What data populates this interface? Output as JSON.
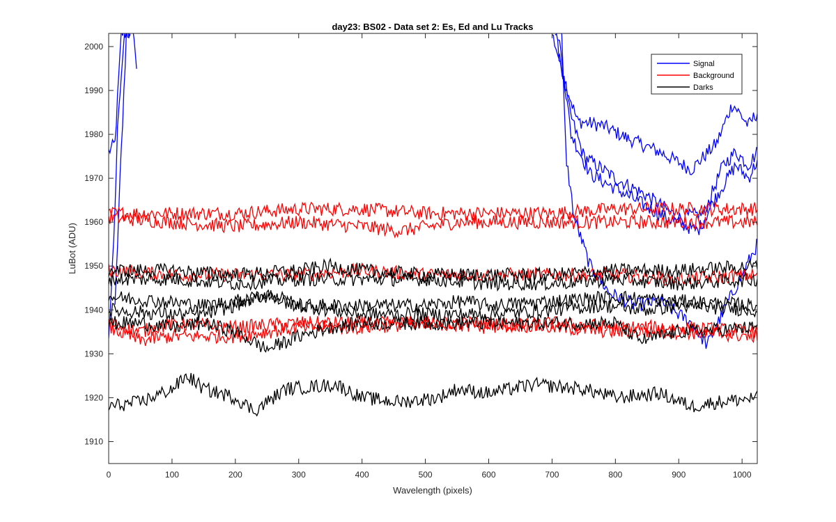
{
  "chart_data": {
    "type": "line",
    "title": "day23: BS02 - Data set 2: Es, Ed and Lu Tracks",
    "xlabel": "Wavelength (pixels)",
    "ylabel": "LuBot (ADU)",
    "xlim": [
      0,
      1024
    ],
    "ylim": [
      1905,
      2003
    ],
    "xticks": [
      0,
      100,
      200,
      300,
      400,
      500,
      600,
      700,
      800,
      900,
      1000
    ],
    "yticks": [
      1910,
      1920,
      1930,
      1940,
      1950,
      1960,
      1970,
      1980,
      1990,
      2000
    ],
    "grid": false,
    "legend_position": "top-right",
    "legend": [
      {
        "label": "Signal",
        "color": "#0000ff"
      },
      {
        "label": "Background",
        "color": "#ff0000"
      },
      {
        "label": "Darks",
        "color": "#000000"
      }
    ],
    "series": [
      {
        "group": "Signal",
        "color": "#0000ff",
        "points": [
          [
            0,
            1976
          ],
          [
            10,
            1978
          ],
          [
            20,
            2003
          ],
          [
            30,
            2003
          ],
          [
            40,
            2003
          ],
          [
            45,
            1992
          ]
        ]
      },
      {
        "group": "Signal",
        "color": "#0000ff",
        "points": [
          [
            0,
            1934
          ],
          [
            8,
            1955
          ],
          [
            15,
            1985
          ],
          [
            25,
            2003
          ],
          [
            35,
            2003
          ]
        ]
      },
      {
        "group": "Signal",
        "color": "#0000ff",
        "points": [
          [
            10,
            1940
          ],
          [
            18,
            1970
          ],
          [
            28,
            2003
          ]
        ]
      },
      {
        "group": "Signal",
        "color": "#0000ff",
        "points": [
          [
            700,
            2003
          ],
          [
            725,
            1990
          ],
          [
            740,
            1983
          ],
          [
            780,
            1982
          ],
          [
            820,
            1979
          ],
          [
            870,
            1976
          ],
          [
            920,
            1972
          ],
          [
            960,
            1978
          ],
          [
            985,
            1987
          ],
          [
            1010,
            1982
          ],
          [
            1024,
            1985
          ]
        ]
      },
      {
        "group": "Signal",
        "color": "#0000ff",
        "points": [
          [
            705,
            2003
          ],
          [
            728,
            1985
          ],
          [
            750,
            1975
          ],
          [
            800,
            1970
          ],
          [
            850,
            1966
          ],
          [
            900,
            1961
          ],
          [
            940,
            1962
          ],
          [
            970,
            1973
          ],
          [
            990,
            1976
          ],
          [
            1010,
            1973
          ],
          [
            1024,
            1976
          ]
        ]
      },
      {
        "group": "Signal",
        "color": "#0000ff",
        "points": [
          [
            710,
            2003
          ],
          [
            730,
            1980
          ],
          [
            760,
            1971
          ],
          [
            820,
            1966
          ],
          [
            880,
            1961
          ],
          [
            930,
            1958
          ],
          [
            960,
            1966
          ],
          [
            990,
            1973
          ],
          [
            1010,
            1970
          ],
          [
            1024,
            1974
          ]
        ]
      },
      {
        "group": "Signal",
        "color": "#0000ff",
        "points": [
          [
            715,
            2003
          ],
          [
            722,
            1975
          ],
          [
            735,
            1961
          ],
          [
            760,
            1950
          ],
          [
            790,
            1944
          ],
          [
            830,
            1941
          ],
          [
            870,
            1942
          ],
          [
            920,
            1937
          ],
          [
            945,
            1932
          ],
          [
            975,
            1941
          ],
          [
            1000,
            1948
          ],
          [
            1024,
            1955
          ]
        ]
      },
      {
        "group": "Background",
        "color": "#ff0000",
        "points": [
          [
            0,
            1962
          ],
          [
            100,
            1962
          ],
          [
            200,
            1962
          ],
          [
            300,
            1963
          ],
          [
            400,
            1963
          ],
          [
            500,
            1962
          ],
          [
            600,
            1962
          ],
          [
            700,
            1962
          ],
          [
            800,
            1963
          ],
          [
            900,
            1963
          ],
          [
            1024,
            1963
          ]
        ]
      },
      {
        "group": "Background",
        "color": "#ff0000",
        "points": [
          [
            0,
            1961
          ],
          [
            100,
            1960
          ],
          [
            200,
            1959
          ],
          [
            300,
            1960
          ],
          [
            400,
            1959
          ],
          [
            460,
            1958
          ],
          [
            550,
            1960
          ],
          [
            650,
            1960
          ],
          [
            750,
            1960
          ],
          [
            850,
            1960
          ],
          [
            950,
            1960
          ],
          [
            1024,
            1960
          ]
        ]
      },
      {
        "group": "Background",
        "color": "#ff0000",
        "points": [
          [
            0,
            1949
          ],
          [
            100,
            1948
          ],
          [
            200,
            1948
          ],
          [
            300,
            1948
          ],
          [
            400,
            1949
          ],
          [
            500,
            1948
          ],
          [
            600,
            1948
          ],
          [
            700,
            1948
          ],
          [
            800,
            1948
          ],
          [
            900,
            1947
          ],
          [
            1024,
            1948
          ]
        ]
      },
      {
        "group": "Background",
        "color": "#ff0000",
        "points": [
          [
            0,
            1937
          ],
          [
            50,
            1935
          ],
          [
            100,
            1937
          ],
          [
            200,
            1936
          ],
          [
            300,
            1937
          ],
          [
            400,
            1937
          ],
          [
            500,
            1937
          ],
          [
            600,
            1936
          ],
          [
            700,
            1937
          ],
          [
            800,
            1936
          ],
          [
            900,
            1936
          ],
          [
            1024,
            1935
          ]
        ]
      },
      {
        "group": "Background",
        "color": "#ff0000",
        "points": [
          [
            0,
            1936
          ],
          [
            50,
            1933
          ],
          [
            100,
            1934
          ],
          [
            200,
            1934
          ],
          [
            250,
            1935
          ],
          [
            300,
            1936
          ],
          [
            400,
            1936
          ],
          [
            500,
            1937
          ],
          [
            600,
            1937
          ],
          [
            700,
            1936
          ],
          [
            800,
            1935
          ],
          [
            900,
            1935
          ],
          [
            1024,
            1934
          ]
        ]
      },
      {
        "group": "Darks",
        "color": "#000000",
        "points": [
          [
            0,
            1949
          ],
          [
            100,
            1949
          ],
          [
            200,
            1948
          ],
          [
            300,
            1949
          ],
          [
            350,
            1950
          ],
          [
            400,
            1949
          ],
          [
            500,
            1948
          ],
          [
            600,
            1948
          ],
          [
            700,
            1948
          ],
          [
            800,
            1949
          ],
          [
            900,
            1949
          ],
          [
            1024,
            1950
          ]
        ]
      },
      {
        "group": "Darks",
        "color": "#000000",
        "points": [
          [
            0,
            1947
          ],
          [
            100,
            1947
          ],
          [
            200,
            1946
          ],
          [
            300,
            1947
          ],
          [
            400,
            1947
          ],
          [
            500,
            1947
          ],
          [
            600,
            1946
          ],
          [
            700,
            1946
          ],
          [
            800,
            1947
          ],
          [
            900,
            1946
          ],
          [
            1024,
            1947
          ]
        ]
      },
      {
        "group": "Darks",
        "color": "#000000",
        "points": [
          [
            0,
            1943
          ],
          [
            80,
            1942
          ],
          [
            150,
            1941
          ],
          [
            200,
            1942
          ],
          [
            250,
            1943
          ],
          [
            300,
            1941
          ],
          [
            400,
            1941
          ],
          [
            500,
            1941
          ],
          [
            560,
            1942
          ],
          [
            600,
            1941
          ],
          [
            700,
            1942
          ],
          [
            800,
            1943
          ],
          [
            900,
            1942
          ],
          [
            1024,
            1941
          ]
        ]
      },
      {
        "group": "Darks",
        "color": "#000000",
        "points": [
          [
            0,
            1940
          ],
          [
            100,
            1939
          ],
          [
            150,
            1939
          ],
          [
            200,
            1941
          ],
          [
            250,
            1944
          ],
          [
            300,
            1941
          ],
          [
            400,
            1939
          ],
          [
            500,
            1939
          ],
          [
            600,
            1939
          ],
          [
            700,
            1940
          ],
          [
            780,
            1941
          ],
          [
            850,
            1940
          ],
          [
            900,
            1941
          ],
          [
            1024,
            1940
          ]
        ]
      },
      {
        "group": "Darks",
        "color": "#000000",
        "points": [
          [
            0,
            1937
          ],
          [
            50,
            1937
          ],
          [
            100,
            1936
          ],
          [
            150,
            1937
          ],
          [
            200,
            1935
          ],
          [
            250,
            1931
          ],
          [
            300,
            1934
          ],
          [
            350,
            1936
          ],
          [
            400,
            1937
          ],
          [
            500,
            1937
          ],
          [
            600,
            1937
          ],
          [
            700,
            1937
          ],
          [
            800,
            1937
          ],
          [
            840,
            1933
          ],
          [
            900,
            1935
          ],
          [
            1024,
            1936
          ]
        ]
      },
      {
        "group": "Darks",
        "color": "#000000",
        "points": [
          [
            0,
            1918
          ],
          [
            50,
            1919
          ],
          [
            100,
            1922
          ],
          [
            125,
            1925
          ],
          [
            150,
            1922
          ],
          [
            200,
            1920
          ],
          [
            230,
            1917
          ],
          [
            280,
            1922
          ],
          [
            360,
            1923
          ],
          [
            400,
            1920
          ],
          [
            460,
            1919
          ],
          [
            520,
            1920
          ],
          [
            550,
            1922
          ],
          [
            600,
            1921
          ],
          [
            670,
            1923
          ],
          [
            750,
            1922
          ],
          [
            800,
            1920
          ],
          [
            870,
            1921
          ],
          [
            920,
            1918
          ],
          [
            960,
            1919
          ],
          [
            1024,
            1920
          ]
        ]
      }
    ]
  }
}
